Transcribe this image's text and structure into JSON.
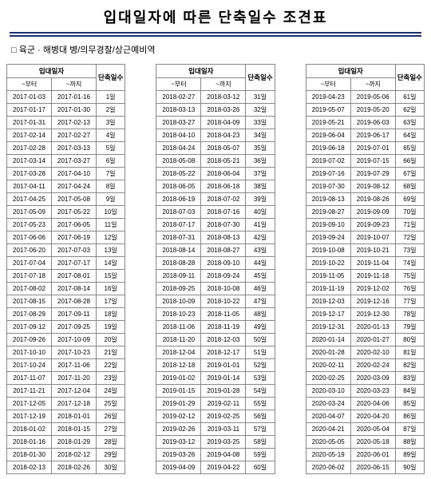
{
  "title": "입대일자에 따른 단축일수 조견표",
  "subtitle": "□ 육군 · 해병대  병/의무경찰/상근예비역",
  "header_cols": {
    "enlist": "입대일자",
    "from": "~부터",
    "to": "~까지",
    "days": "단축일수"
  },
  "unit": "일",
  "tables": [
    [
      [
        "2017-01-03",
        "2017-01-16",
        "1"
      ],
      [
        "2017-01-17",
        "2017-01-30",
        "2"
      ],
      [
        "2017-01-31",
        "2017-02-13",
        "3"
      ],
      [
        "2017-02-14",
        "2017-02-27",
        "4"
      ],
      [
        "2017-02-28",
        "2017-03-13",
        "5"
      ],
      [
        "2017-03-14",
        "2017-03-27",
        "6"
      ],
      [
        "2017-03-28",
        "2017-04-10",
        "7"
      ],
      [
        "2017-04-11",
        "2017-04-24",
        "8"
      ],
      [
        "2017-04-25",
        "2017-05-08",
        "9"
      ],
      [
        "2017-05-09",
        "2017-05-22",
        "10"
      ],
      [
        "2017-05-23",
        "2017-06-05",
        "11"
      ],
      [
        "2017-06-06",
        "2017-06-19",
        "12"
      ],
      [
        "2017-06-20",
        "2017-07-03",
        "13"
      ],
      [
        "2017-07-04",
        "2017-07-17",
        "14"
      ],
      [
        "2017-07-18",
        "2017-08-01",
        "15"
      ],
      [
        "2017-08-02",
        "2017-08-14",
        "16"
      ],
      [
        "2017-08-15",
        "2017-08-28",
        "17"
      ],
      [
        "2017-08-29",
        "2017-09-11",
        "18"
      ],
      [
        "2017-09-12",
        "2017-09-25",
        "19"
      ],
      [
        "2017-09-26",
        "2017-10-09",
        "20"
      ],
      [
        "2017-10-10",
        "2017-10-23",
        "21"
      ],
      [
        "2017-10-24",
        "2017-11-06",
        "22"
      ],
      [
        "2017-11-07",
        "2017-11-20",
        "23"
      ],
      [
        "2017-11-21",
        "2017-12-04",
        "24"
      ],
      [
        "2017-12-05",
        "2017-12-18",
        "25"
      ],
      [
        "2017-12-19",
        "2018-01-01",
        "26"
      ],
      [
        "2018-01-02",
        "2018-01-15",
        "27"
      ],
      [
        "2018-01-16",
        "2018-01-29",
        "28"
      ],
      [
        "2018-01-30",
        "2018-02-12",
        "29"
      ],
      [
        "2018-02-13",
        "2018-02-26",
        "30"
      ]
    ],
    [
      [
        "2018-02-27",
        "2018-03-12",
        "31"
      ],
      [
        "2018-03-13",
        "2018-03-26",
        "32"
      ],
      [
        "2018-03-27",
        "2018-04-09",
        "33"
      ],
      [
        "2018-04-10",
        "2018-04-23",
        "34"
      ],
      [
        "2018-04-24",
        "2018-05-07",
        "35"
      ],
      [
        "2018-05-08",
        "2018-05-21",
        "36"
      ],
      [
        "2018-05-22",
        "2018-06-04",
        "37"
      ],
      [
        "2018-06-05",
        "2018-06-18",
        "38"
      ],
      [
        "2018-06-19",
        "2018-07-02",
        "39"
      ],
      [
        "2018-07-03",
        "2018-07-16",
        "40"
      ],
      [
        "2018-07-17",
        "2018-07-30",
        "41"
      ],
      [
        "2018-07-31",
        "2018-08-13",
        "42"
      ],
      [
        "2018-08-14",
        "2018-08-27",
        "43"
      ],
      [
        "2018-08-28",
        "2018-09-10",
        "44"
      ],
      [
        "2018-09-11",
        "2018-09-24",
        "45"
      ],
      [
        "2018-09-25",
        "2018-10-08",
        "46"
      ],
      [
        "2018-10-09",
        "2018-10-22",
        "47"
      ],
      [
        "2018-10-23",
        "2018-11-05",
        "48"
      ],
      [
        "2018-11-06",
        "2018-11-19",
        "49"
      ],
      [
        "2018-11-20",
        "2018-12-03",
        "50"
      ],
      [
        "2018-12-04",
        "2018-12-17",
        "51"
      ],
      [
        "2018-12-18",
        "2019-01-01",
        "52"
      ],
      [
        "2019-01-02",
        "2019-01-14",
        "53"
      ],
      [
        "2019-01-15",
        "2019-01-28",
        "54"
      ],
      [
        "2019-01-29",
        "2019-02-11",
        "55"
      ],
      [
        "2019-02-12",
        "2019-02-25",
        "56"
      ],
      [
        "2019-02-26",
        "2019-03-11",
        "57"
      ],
      [
        "2019-03-12",
        "2019-03-25",
        "58"
      ],
      [
        "2019-03-26",
        "2019-04-08",
        "59"
      ],
      [
        "2019-04-09",
        "2019-04-22",
        "60"
      ]
    ],
    [
      [
        "2019-04-23",
        "2019-05-06",
        "61"
      ],
      [
        "2019-05-07",
        "2019-05-20",
        "62"
      ],
      [
        "2019-05-21",
        "2019-06-03",
        "63"
      ],
      [
        "2019-06-04",
        "2019-06-17",
        "64"
      ],
      [
        "2019-06-18",
        "2019-07-01",
        "65"
      ],
      [
        "2019-07-02",
        "2019-07-15",
        "66"
      ],
      [
        "2019-07-16",
        "2019-07-29",
        "67"
      ],
      [
        "2019-07-30",
        "2019-08-12",
        "68"
      ],
      [
        "2019-08-13",
        "2019-08-26",
        "69"
      ],
      [
        "2019-08-27",
        "2019-09-09",
        "70"
      ],
      [
        "2019-09-10",
        "2019-09-23",
        "71"
      ],
      [
        "2019-09-24",
        "2019-10-07",
        "72"
      ],
      [
        "2019-10-08",
        "2019-10-21",
        "73"
      ],
      [
        "2019-10-22",
        "2019-11-04",
        "74"
      ],
      [
        "2019-11-05",
        "2019-11-18",
        "75"
      ],
      [
        "2019-11-19",
        "2019-12-02",
        "76"
      ],
      [
        "2019-12-03",
        "2019-12-16",
        "77"
      ],
      [
        "2019-12-17",
        "2019-12-30",
        "78"
      ],
      [
        "2019-12-31",
        "2020-01-13",
        "79"
      ],
      [
        "2020-01-14",
        "2020-01-27",
        "80"
      ],
      [
        "2020-01-28",
        "2020-02-10",
        "81"
      ],
      [
        "2020-02-11",
        "2020-02-24",
        "82"
      ],
      [
        "2020-02-25",
        "2020-03-09",
        "83"
      ],
      [
        "2020-03-10",
        "2020-03-23",
        "84"
      ],
      [
        "2020-03-24",
        "2020-04-06",
        "85"
      ],
      [
        "2020-04-07",
        "2020-04-20",
        "86"
      ],
      [
        "2020-04-21",
        "2020-05-04",
        "87"
      ],
      [
        "2020-05-05",
        "2020-05-18",
        "88"
      ],
      [
        "2020-05-19",
        "2020-06-01",
        "89"
      ],
      [
        "2020-06-02",
        "2020-06-15",
        "90"
      ]
    ]
  ]
}
